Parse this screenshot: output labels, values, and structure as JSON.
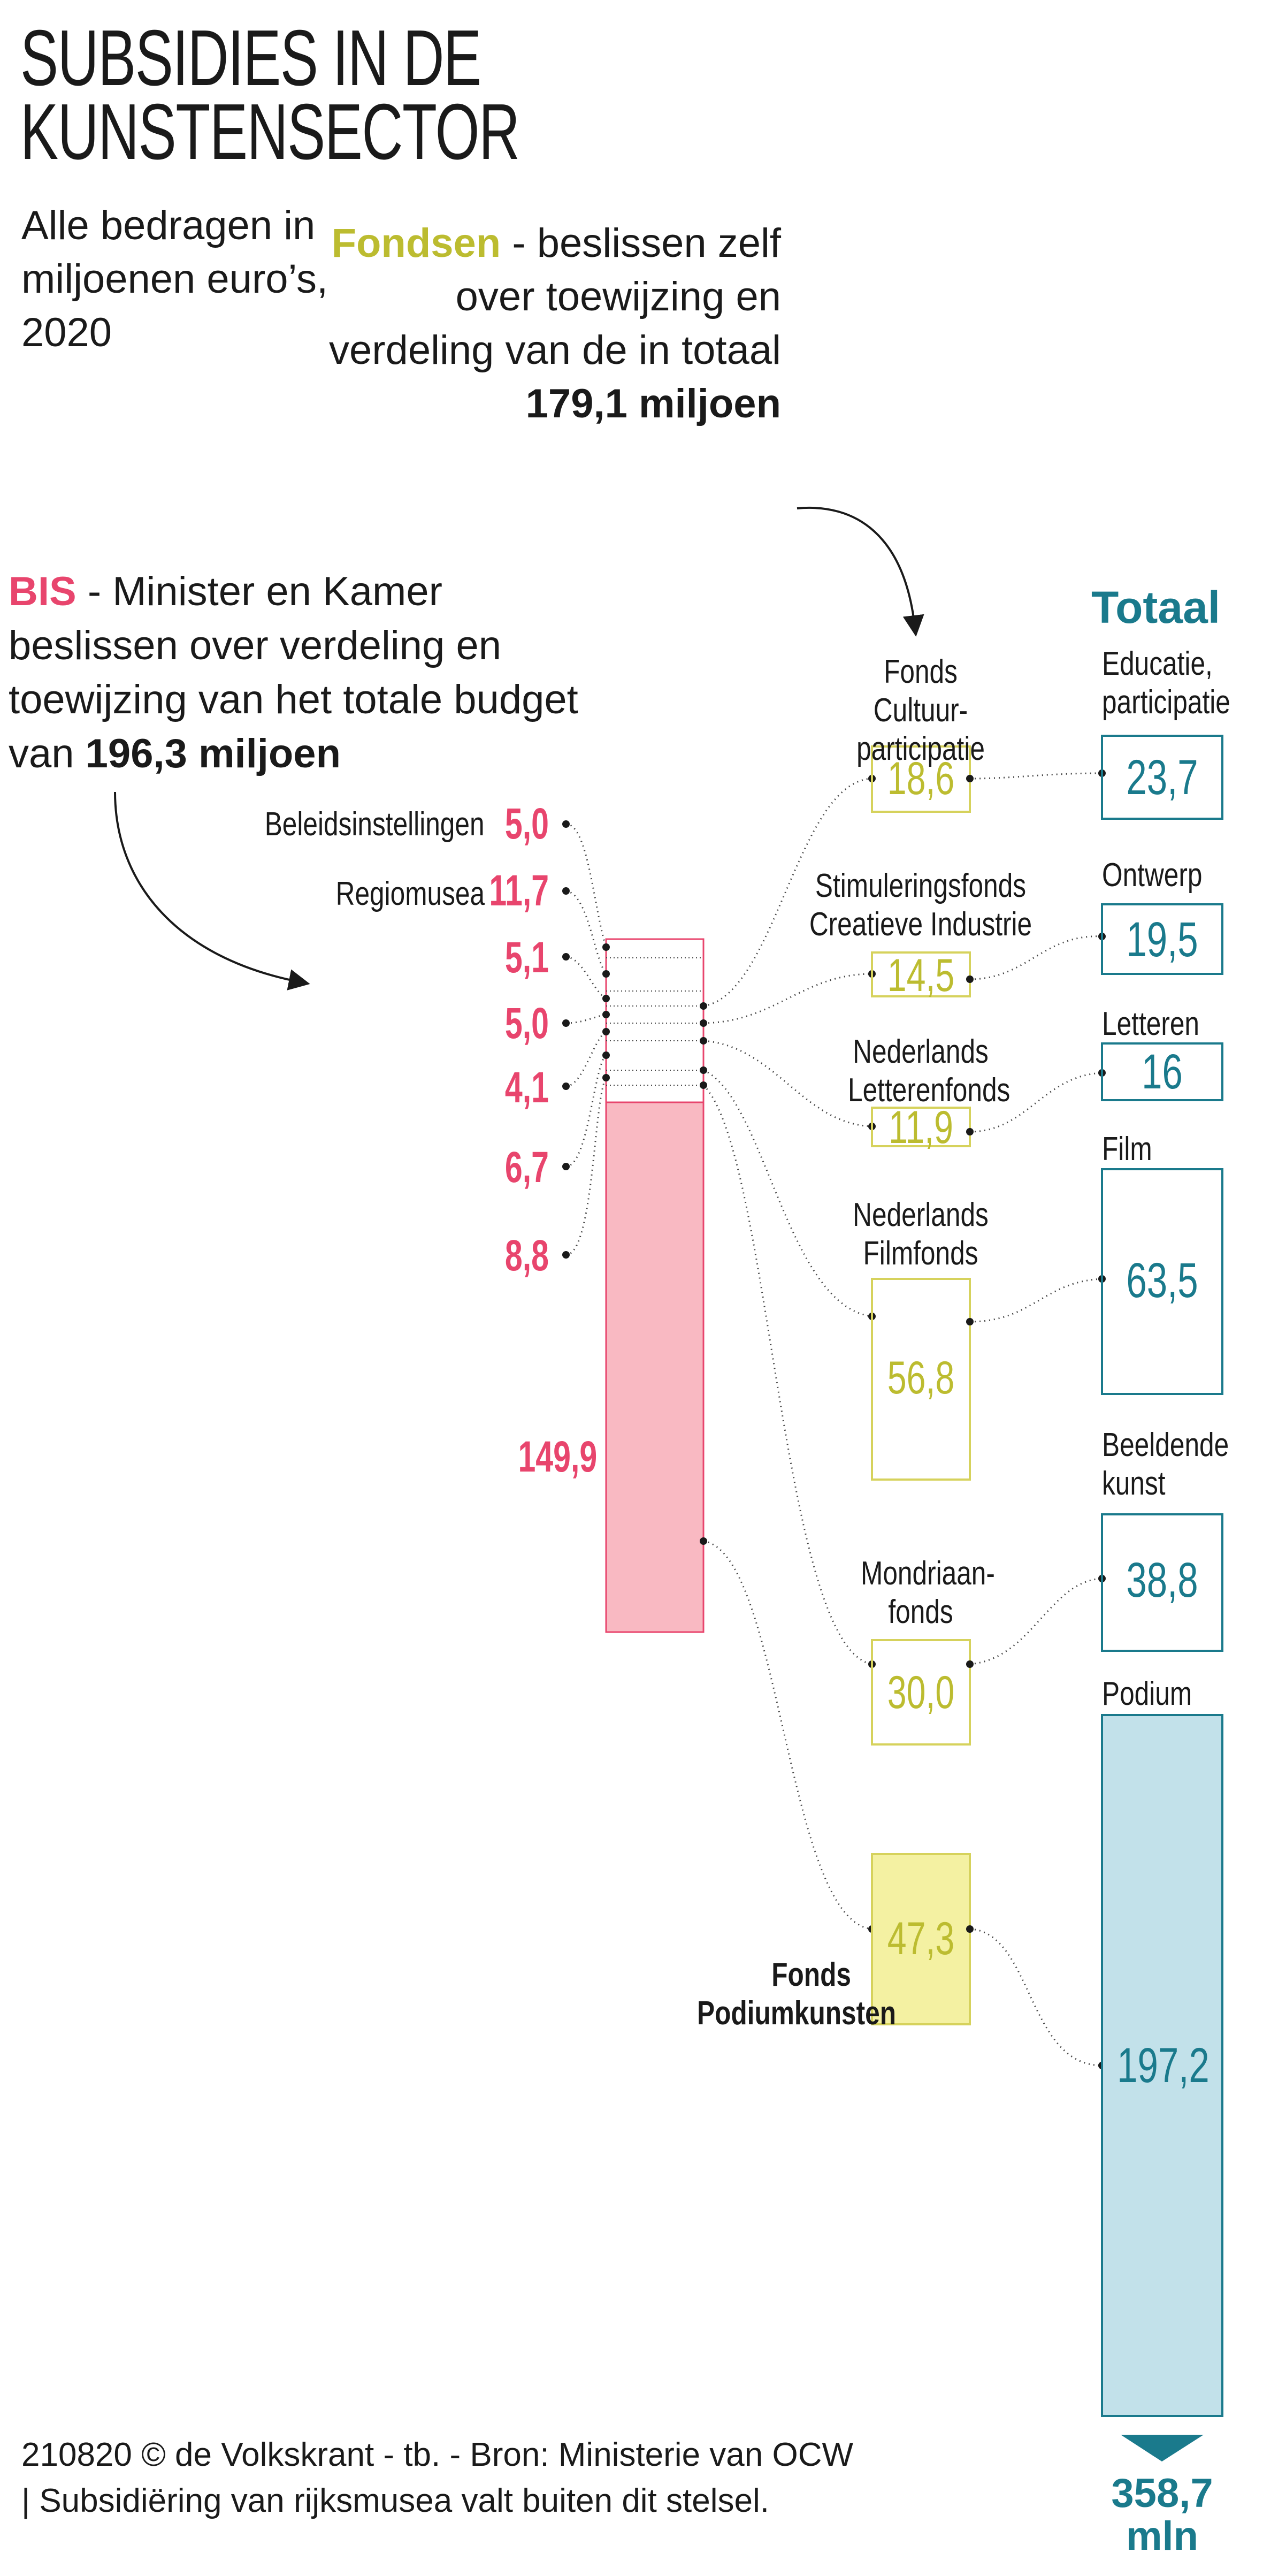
{
  "title": [
    "SUBSIDIES IN DE",
    "KUNSTENSECTOR"
  ],
  "subtitle": "Alle bedragen in miljoenen euro’s, 2020",
  "bis": {
    "key": "BIS",
    "text": " - Minister en Kamer beslissen over verdeling en toewijzing van het totale budget van ",
    "total": "196,3 miljoen"
  },
  "fondsen": {
    "key": "Fondsen",
    "text": " - beslissen zelf over toewijzing en verdeling van de in totaal ",
    "total": "179,1 miljoen"
  },
  "bis_items": [
    {
      "label": "Beleidsinstellingen",
      "value": "5,0"
    },
    {
      "label": "Regiomusea",
      "value": "11,7"
    },
    {
      "label": "",
      "value": "5,1"
    },
    {
      "label": "",
      "value": "5,0"
    },
    {
      "label": "",
      "value": "4,1"
    },
    {
      "label": "",
      "value": "6,7"
    },
    {
      "label": "",
      "value": "8,8"
    },
    {
      "label": "",
      "value": "149,9"
    }
  ],
  "funds": [
    {
      "name": "Fonds Cultuur-participatie",
      "value": "18,6"
    },
    {
      "name": "Stimuleringsfonds Creatieve Industrie",
      "value": "14,5"
    },
    {
      "name": "Nederlands Letterenfonds",
      "value": "11,9"
    },
    {
      "name": "Nederlands Filmfonds",
      "value": "56,8"
    },
    {
      "name": "Mondriaan-fonds",
      "value": "30,0"
    },
    {
      "name": "Fonds Podiumkunsten",
      "value": "47,3"
    }
  ],
  "totals_header": "Totaal",
  "totals": [
    {
      "name": "Educatie, participatie",
      "value": "23,7"
    },
    {
      "name": "Ontwerp",
      "value": "19,5"
    },
    {
      "name": "Letteren",
      "value": "16"
    },
    {
      "name": "Film",
      "value": "63,5"
    },
    {
      "name": "Beeldende kunst",
      "value": "38,8"
    },
    {
      "name": "Podium",
      "value": "197,2"
    }
  ],
  "grand_total": "358,7 mln",
  "footer": "210820 © de Volkskrant - tb. - Bron: Ministerie van OCW | Subsidiëring van rijksmusea valt buiten dit stelsel.",
  "colors": {
    "bis_pink": "#e8456d",
    "bis_fill": "#f9b9c2",
    "fonds_yellow": "#bcbc30",
    "fonds_fill": "#f4f1a2",
    "total_blue": "#1a7a8c",
    "total_fill": "#c2e1ea"
  }
}
